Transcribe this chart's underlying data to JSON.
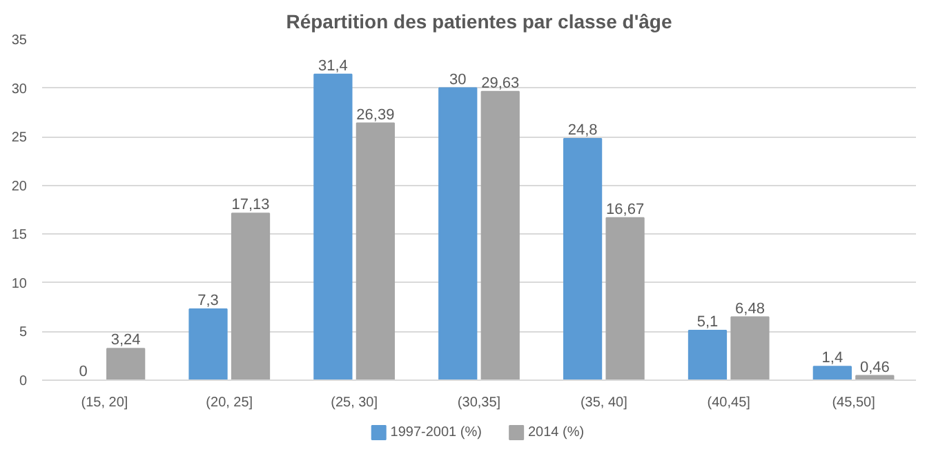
{
  "chart_data": {
    "type": "bar",
    "title": "Répartition des patientes par classe d'âge",
    "categories": [
      "(15, 20]",
      "(20, 25]",
      "(25, 30]",
      "(30,35]",
      "(35, 40]",
      "(40,45]",
      "(45,50]"
    ],
    "series": [
      {
        "name": "1997-2001 (%)",
        "color": "#5b9bd5",
        "values": [
          0,
          7.3,
          31.4,
          30,
          24.8,
          5.1,
          1.4
        ],
        "value_labels": [
          "0",
          "7,3",
          "31,4",
          "30",
          "24,8",
          "5,1",
          "1,4"
        ]
      },
      {
        "name": "2014 (%)",
        "color": "#a5a5a5",
        "values": [
          3.24,
          17.13,
          26.39,
          29.63,
          16.67,
          6.48,
          0.46
        ],
        "value_labels": [
          "3,24",
          "17,13",
          "26,39",
          "29,63",
          "16,67",
          "6,48",
          "0,46"
        ]
      }
    ],
    "ylim": [
      0,
      35
    ],
    "yticks": [
      0,
      5,
      10,
      15,
      20,
      25,
      30,
      35
    ],
    "grid": "y",
    "legend": "bottom"
  }
}
